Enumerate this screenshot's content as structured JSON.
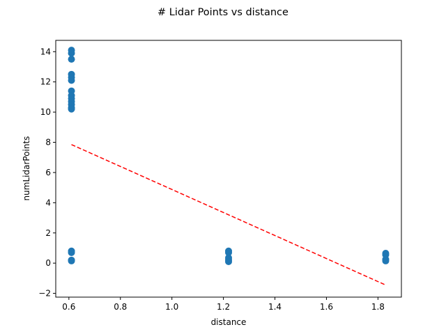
{
  "chart_data": {
    "type": "scatter",
    "title": "# Lidar Points vs distance",
    "xlabel": "distance",
    "ylabel": "numLidarPoints",
    "xlim": [
      0.549,
      1.891
    ],
    "ylim": [
      -2.25,
      14.75
    ],
    "xticks": [
      0.6,
      0.8,
      1.0,
      1.2,
      1.4,
      1.6,
      1.8
    ],
    "xtick_labels": [
      "0.6",
      "0.8",
      "1.0",
      "1.2",
      "1.4",
      "1.6",
      "1.8"
    ],
    "yticks": [
      -2,
      0,
      2,
      4,
      6,
      8,
      10,
      12,
      14
    ],
    "ytick_labels": [
      "−2",
      "0",
      "2",
      "4",
      "6",
      "8",
      "10",
      "12",
      "14"
    ],
    "grid": false,
    "series": [
      {
        "kind": "scatter",
        "color": "#1f77b4",
        "points": [
          [
            0.61,
            14.1
          ],
          [
            0.61,
            13.9
          ],
          [
            0.61,
            13.5
          ],
          [
            0.61,
            12.5
          ],
          [
            0.61,
            12.3
          ],
          [
            0.61,
            12.1
          ],
          [
            0.61,
            11.4
          ],
          [
            0.61,
            11.1
          ],
          [
            0.61,
            10.9
          ],
          [
            0.61,
            10.7
          ],
          [
            0.61,
            10.5
          ],
          [
            0.61,
            10.3
          ],
          [
            0.61,
            10.2
          ],
          [
            0.61,
            0.8
          ],
          [
            0.61,
            0.7
          ],
          [
            0.61,
            0.2
          ],
          [
            0.61,
            0.15
          ],
          [
            1.22,
            0.8
          ],
          [
            1.22,
            0.7
          ],
          [
            1.22,
            0.35
          ],
          [
            1.22,
            0.2
          ],
          [
            1.22,
            0.1
          ],
          [
            1.83,
            0.65
          ],
          [
            1.83,
            0.55
          ],
          [
            1.83,
            0.25
          ],
          [
            1.83,
            0.15
          ]
        ]
      },
      {
        "kind": "line",
        "style": "dashed",
        "color": "#ff0000",
        "points": [
          [
            0.61,
            7.85
          ],
          [
            1.83,
            -1.45
          ]
        ]
      }
    ]
  }
}
